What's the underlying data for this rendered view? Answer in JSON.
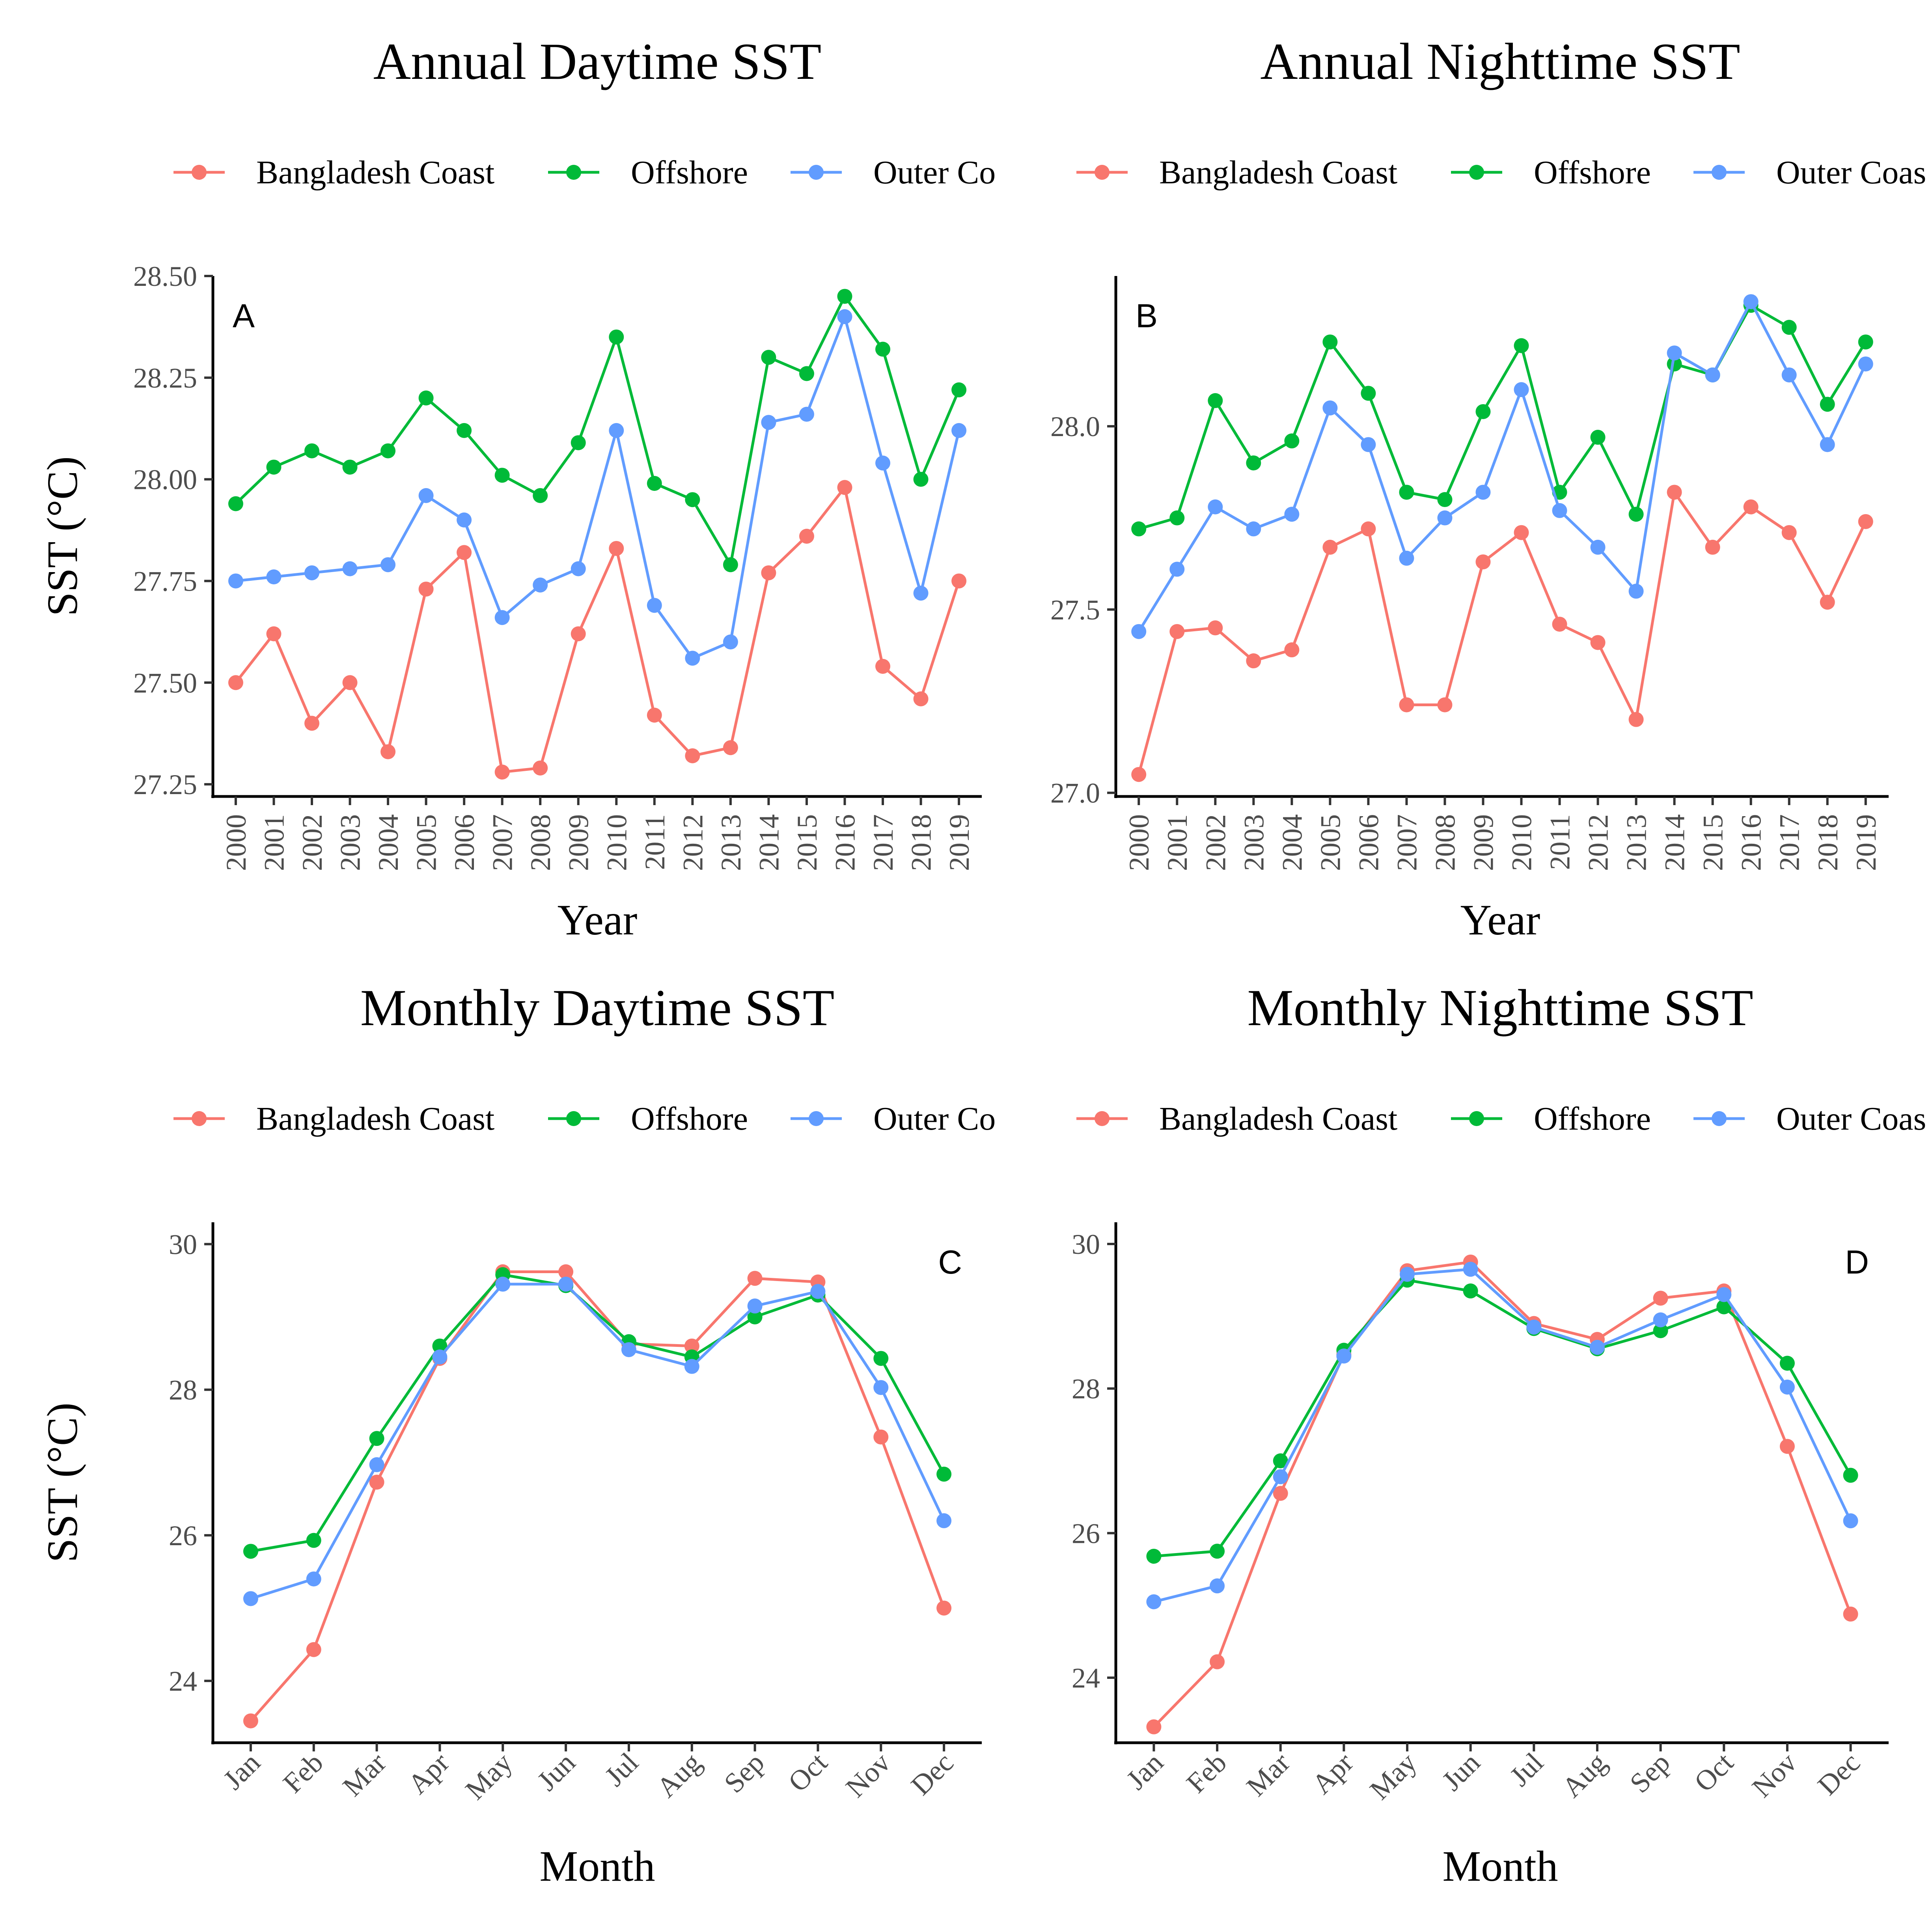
{
  "colors": {
    "Bangladesh Coast": "#F8766D",
    "Offshore": "#00BA38",
    "Outer Coast": "#619CFF"
  },
  "chart_data": [
    {
      "type": "line",
      "title": "Annual Daytime SST",
      "panel_label": "A",
      "xlabel": "Year",
      "ylabel": "SST (°C)",
      "categories": [
        "2000",
        "2001",
        "2002",
        "2003",
        "2004",
        "2005",
        "2006",
        "2007",
        "2008",
        "2009",
        "2010",
        "2011",
        "2012",
        "2013",
        "2014",
        "2015",
        "2016",
        "2017",
        "2018",
        "2019"
      ],
      "ylim": [
        27.22,
        28.5
      ],
      "yticks": [
        27.25,
        27.5,
        27.75,
        28.0,
        28.25,
        28.5
      ],
      "ytick_labels": [
        "27.25",
        "27.50",
        "27.75",
        "28.00",
        "28.25",
        "28.50"
      ],
      "legend": [
        "Bangladesh Coast",
        "Offshore",
        "Outer Co"
      ],
      "series": [
        {
          "name": "Bangladesh Coast",
          "values": [
            27.5,
            27.62,
            27.4,
            27.5,
            27.33,
            27.73,
            27.82,
            27.28,
            27.29,
            27.62,
            27.83,
            27.42,
            27.32,
            27.34,
            27.77,
            27.86,
            27.98,
            27.54,
            27.46,
            27.75
          ]
        },
        {
          "name": "Offshore",
          "values": [
            27.94,
            28.03,
            28.07,
            28.03,
            28.07,
            28.2,
            28.12,
            28.01,
            27.96,
            28.09,
            28.35,
            27.99,
            27.95,
            27.79,
            28.3,
            28.26,
            28.45,
            28.32,
            28.0,
            28.22
          ]
        },
        {
          "name": "Outer Coast",
          "values": [
            27.75,
            27.76,
            27.77,
            27.78,
            27.79,
            27.96,
            27.9,
            27.66,
            27.74,
            27.78,
            28.12,
            27.69,
            27.56,
            27.6,
            28.14,
            28.16,
            28.4,
            28.04,
            27.72,
            28.12
          ]
        }
      ]
    },
    {
      "type": "line",
      "title": "Annual Nighttime SST",
      "panel_label": "B",
      "xlabel": "Year",
      "ylabel": "",
      "categories": [
        "2000",
        "2001",
        "2002",
        "2003",
        "2004",
        "2005",
        "2006",
        "2007",
        "2008",
        "2009",
        "2010",
        "2011",
        "2012",
        "2013",
        "2014",
        "2015",
        "2016",
        "2017",
        "2018",
        "2019"
      ],
      "ylim": [
        26.99,
        28.41
      ],
      "yticks": [
        27.0,
        27.5,
        28.0
      ],
      "ytick_labels": [
        "27.0",
        "27.5",
        "28.0"
      ],
      "legend": [
        "Bangladesh Coast",
        "Offshore",
        "Outer Coas"
      ],
      "series": [
        {
          "name": "Bangladesh Coast",
          "values": [
            27.05,
            27.44,
            27.45,
            27.36,
            27.39,
            27.67,
            27.72,
            27.24,
            27.24,
            27.63,
            27.71,
            27.46,
            27.41,
            27.2,
            27.82,
            27.67,
            27.78,
            27.71,
            27.52,
            27.74
          ]
        },
        {
          "name": "Offshore",
          "values": [
            27.72,
            27.75,
            28.07,
            27.9,
            27.96,
            28.23,
            28.09,
            27.82,
            27.8,
            28.04,
            28.22,
            27.82,
            27.97,
            27.76,
            28.17,
            28.14,
            28.33,
            28.27,
            28.06,
            28.23
          ]
        },
        {
          "name": "Outer Coast",
          "values": [
            27.44,
            27.61,
            27.78,
            27.72,
            27.76,
            28.05,
            27.95,
            27.64,
            27.75,
            27.82,
            28.1,
            27.77,
            27.67,
            27.55,
            28.2,
            28.14,
            28.34,
            28.14,
            27.95,
            28.17
          ]
        }
      ]
    },
    {
      "type": "line",
      "title": "Monthly Daytime SST",
      "panel_label": "C",
      "xlabel": "Month",
      "ylabel": "SST (°C)",
      "categories": [
        "Jan",
        "Feb",
        "Mar",
        "Apr",
        "May",
        "Jun",
        "Jul",
        "Aug",
        "Sep",
        "Oct",
        "Nov",
        "Dec"
      ],
      "ylim": [
        23.15,
        30.3
      ],
      "yticks": [
        24,
        26,
        28,
        30
      ],
      "ytick_labels": [
        "24",
        "26",
        "28",
        "30"
      ],
      "legend": [
        "Bangladesh Coast",
        "Offshore",
        "Outer Co"
      ],
      "series": [
        {
          "name": "Bangladesh Coast",
          "values": [
            23.45,
            24.43,
            26.73,
            28.43,
            29.62,
            29.62,
            28.63,
            28.6,
            29.53,
            29.48,
            27.35,
            25.0
          ]
        },
        {
          "name": "Offshore",
          "values": [
            25.78,
            25.93,
            27.33,
            28.6,
            29.58,
            29.43,
            28.66,
            28.45,
            29.0,
            29.3,
            28.43,
            26.84
          ]
        },
        {
          "name": "Outer Coast",
          "values": [
            25.13,
            25.4,
            26.97,
            28.45,
            29.45,
            29.45,
            28.55,
            28.32,
            29.15,
            29.35,
            28.03,
            26.2
          ]
        }
      ]
    },
    {
      "type": "line",
      "title": "Monthly Nighttime SST",
      "panel_label": "D",
      "xlabel": "Month",
      "ylabel": "",
      "categories": [
        "Jan",
        "Feb",
        "Mar",
        "Apr",
        "May",
        "Jun",
        "Jul",
        "Aug",
        "Sep",
        "Oct",
        "Nov",
        "Dec"
      ],
      "ylim": [
        23.1,
        30.3
      ],
      "yticks": [
        24,
        26,
        28,
        30
      ],
      "ytick_labels": [
        "24",
        "26",
        "28",
        "30"
      ],
      "legend": [
        "Bangladesh Coast",
        "Offshore",
        "Outer Coas"
      ],
      "series": [
        {
          "name": "Bangladesh Coast",
          "values": [
            23.32,
            24.22,
            26.55,
            28.47,
            29.63,
            29.75,
            28.9,
            28.68,
            29.25,
            29.35,
            27.2,
            24.88
          ]
        },
        {
          "name": "Offshore",
          "values": [
            25.68,
            25.75,
            27.0,
            28.53,
            29.5,
            29.35,
            28.83,
            28.55,
            28.8,
            29.13,
            28.35,
            26.8
          ]
        },
        {
          "name": "Outer Coast",
          "values": [
            25.05,
            25.27,
            26.78,
            28.45,
            29.58,
            29.65,
            28.85,
            28.57,
            28.95,
            29.3,
            28.02,
            26.17
          ]
        }
      ]
    }
  ]
}
